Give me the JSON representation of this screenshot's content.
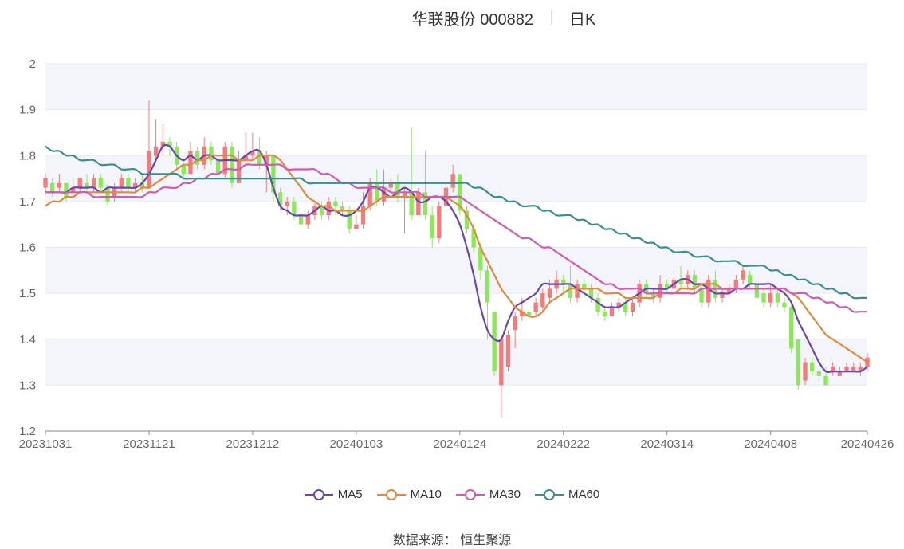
{
  "header": {
    "stock_title": "华联股份 000882",
    "period": "日K"
  },
  "source": {
    "label": "数据来源：",
    "value": "恒生聚源"
  },
  "chart_data": {
    "type": "candlestick",
    "ylim": [
      1.2,
      2.0
    ],
    "yticks": [
      "1.2",
      "1.3",
      "1.4",
      "1.5",
      "1.6",
      "1.7",
      "1.8",
      "1.9",
      "2"
    ],
    "xticks": [
      {
        "label": "20231031",
        "i": 0
      },
      {
        "label": "20231121",
        "i": 15
      },
      {
        "label": "20231212",
        "i": 30
      },
      {
        "label": "20240103",
        "i": 45
      },
      {
        "label": "20240124",
        "i": 60
      },
      {
        "label": "20240222",
        "i": 75
      },
      {
        "label": "20240314",
        "i": 90
      },
      {
        "label": "20240408",
        "i": 105
      },
      {
        "label": "20240426",
        "i": 119
      }
    ],
    "colors": {
      "up": "#f37b7b",
      "down": "#8be85a",
      "band": "#f3f5fb",
      "grid": "#e6e9f0",
      "axis": "#666666"
    },
    "candles": [
      [
        1.73,
        1.75,
        1.76,
        1.72
      ],
      [
        1.74,
        1.72,
        1.75,
        1.71
      ],
      [
        1.73,
        1.74,
        1.76,
        1.72
      ],
      [
        1.74,
        1.71,
        1.74,
        1.7
      ],
      [
        1.72,
        1.73,
        1.75,
        1.71
      ],
      [
        1.73,
        1.75,
        1.75,
        1.72
      ],
      [
        1.74,
        1.73,
        1.76,
        1.72
      ],
      [
        1.73,
        1.75,
        1.76,
        1.72
      ],
      [
        1.75,
        1.73,
        1.76,
        1.72
      ],
      [
        1.73,
        1.7,
        1.74,
        1.69
      ],
      [
        1.71,
        1.73,
        1.74,
        1.7
      ],
      [
        1.73,
        1.75,
        1.76,
        1.72
      ],
      [
        1.75,
        1.73,
        1.76,
        1.72
      ],
      [
        1.73,
        1.74,
        1.75,
        1.72
      ],
      [
        1.74,
        1.73,
        1.76,
        1.72
      ],
      [
        1.73,
        1.81,
        1.92,
        1.73
      ],
      [
        1.8,
        1.82,
        1.88,
        1.79
      ],
      [
        1.82,
        1.83,
        1.87,
        1.8
      ],
      [
        1.83,
        1.82,
        1.84,
        1.8
      ],
      [
        1.82,
        1.78,
        1.83,
        1.77
      ],
      [
        1.78,
        1.76,
        1.79,
        1.75
      ],
      [
        1.76,
        1.81,
        1.83,
        1.76
      ],
      [
        1.81,
        1.78,
        1.82,
        1.77
      ],
      [
        1.78,
        1.82,
        1.84,
        1.77
      ],
      [
        1.82,
        1.79,
        1.83,
        1.78
      ],
      [
        1.79,
        1.76,
        1.8,
        1.75
      ],
      [
        1.76,
        1.82,
        1.83,
        1.75
      ],
      [
        1.82,
        1.74,
        1.83,
        1.73
      ],
      [
        1.74,
        1.79,
        1.81,
        1.74
      ],
      [
        1.79,
        1.8,
        1.85,
        1.78
      ],
      [
        1.8,
        1.81,
        1.85,
        1.79
      ],
      [
        1.81,
        1.78,
        1.84,
        1.77
      ],
      [
        1.78,
        1.8,
        1.81,
        1.72
      ],
      [
        1.8,
        1.72,
        1.8,
        1.7
      ],
      [
        1.72,
        1.69,
        1.73,
        1.68
      ],
      [
        1.69,
        1.7,
        1.71,
        1.67
      ],
      [
        1.7,
        1.67,
        1.71,
        1.66
      ],
      [
        1.67,
        1.65,
        1.68,
        1.64
      ],
      [
        1.65,
        1.67,
        1.68,
        1.64
      ],
      [
        1.67,
        1.69,
        1.7,
        1.66
      ],
      [
        1.69,
        1.67,
        1.7,
        1.66
      ],
      [
        1.67,
        1.7,
        1.71,
        1.66
      ],
      [
        1.7,
        1.69,
        1.71,
        1.67
      ],
      [
        1.69,
        1.68,
        1.7,
        1.67
      ],
      [
        1.68,
        1.64,
        1.69,
        1.63
      ],
      [
        1.64,
        1.65,
        1.67,
        1.64
      ],
      [
        1.65,
        1.69,
        1.72,
        1.64
      ],
      [
        1.69,
        1.74,
        1.75,
        1.68
      ],
      [
        1.74,
        1.7,
        1.77,
        1.69
      ],
      [
        1.7,
        1.73,
        1.77,
        1.69
      ],
      [
        1.73,
        1.74,
        1.75,
        1.72
      ],
      [
        1.74,
        1.71,
        1.76,
        1.7
      ],
      [
        1.71,
        1.72,
        1.73,
        1.63
      ],
      [
        1.72,
        1.67,
        1.86,
        1.66
      ],
      [
        1.67,
        1.72,
        1.73,
        1.68
      ],
      [
        1.72,
        1.67,
        1.81,
        1.66
      ],
      [
        1.67,
        1.62,
        1.69,
        1.6
      ],
      [
        1.62,
        1.69,
        1.7,
        1.61
      ],
      [
        1.69,
        1.73,
        1.74,
        1.68
      ],
      [
        1.73,
        1.76,
        1.78,
        1.72
      ],
      [
        1.76,
        1.68,
        1.76,
        1.67
      ],
      [
        1.68,
        1.64,
        1.69,
        1.63
      ],
      [
        1.64,
        1.6,
        1.65,
        1.59
      ],
      [
        1.6,
        1.55,
        1.61,
        1.53
      ],
      [
        1.55,
        1.48,
        1.56,
        1.4
      ],
      [
        1.46,
        1.33,
        1.46,
        1.32
      ],
      [
        1.3,
        1.4,
        1.41,
        1.23
      ],
      [
        1.34,
        1.41,
        1.42,
        1.33
      ],
      [
        1.42,
        1.45,
        1.46,
        1.38
      ],
      [
        1.45,
        1.46,
        1.49,
        1.44
      ],
      [
        1.46,
        1.45,
        1.47,
        1.44
      ],
      [
        1.46,
        1.48,
        1.49,
        1.45
      ],
      [
        1.47,
        1.5,
        1.51,
        1.46
      ],
      [
        1.49,
        1.51,
        1.53,
        1.48
      ],
      [
        1.51,
        1.53,
        1.55,
        1.5
      ],
      [
        1.53,
        1.52,
        1.54,
        1.5
      ],
      [
        1.52,
        1.49,
        1.56,
        1.48
      ],
      [
        1.49,
        1.52,
        1.53,
        1.48
      ],
      [
        1.52,
        1.51,
        1.53,
        1.49
      ],
      [
        1.51,
        1.49,
        1.52,
        1.48
      ],
      [
        1.49,
        1.46,
        1.5,
        1.45
      ],
      [
        1.46,
        1.45,
        1.47,
        1.44
      ],
      [
        1.45,
        1.47,
        1.48,
        1.45
      ],
      [
        1.47,
        1.48,
        1.49,
        1.46
      ],
      [
        1.48,
        1.46,
        1.49,
        1.45
      ],
      [
        1.46,
        1.48,
        1.49,
        1.45
      ],
      [
        1.48,
        1.52,
        1.53,
        1.47
      ],
      [
        1.52,
        1.5,
        1.53,
        1.49
      ],
      [
        1.5,
        1.49,
        1.51,
        1.48
      ],
      [
        1.49,
        1.52,
        1.54,
        1.48
      ],
      [
        1.52,
        1.51,
        1.53,
        1.5
      ],
      [
        1.51,
        1.53,
        1.55,
        1.5
      ],
      [
        1.53,
        1.52,
        1.56,
        1.51
      ],
      [
        1.52,
        1.54,
        1.55,
        1.51
      ],
      [
        1.54,
        1.51,
        1.55,
        1.5
      ],
      [
        1.51,
        1.48,
        1.52,
        1.47
      ],
      [
        1.48,
        1.53,
        1.54,
        1.47
      ],
      [
        1.53,
        1.49,
        1.55,
        1.48
      ],
      [
        1.49,
        1.5,
        1.51,
        1.48
      ],
      [
        1.5,
        1.51,
        1.52,
        1.49
      ],
      [
        1.51,
        1.53,
        1.54,
        1.5
      ],
      [
        1.53,
        1.55,
        1.56,
        1.52
      ],
      [
        1.54,
        1.52,
        1.55,
        1.51
      ],
      [
        1.52,
        1.49,
        1.53,
        1.48
      ],
      [
        1.5,
        1.48,
        1.51,
        1.47
      ],
      [
        1.48,
        1.5,
        1.52,
        1.47
      ],
      [
        1.5,
        1.48,
        1.51,
        1.47
      ],
      [
        1.48,
        1.47,
        1.49,
        1.46
      ],
      [
        1.47,
        1.38,
        1.48,
        1.37
      ],
      [
        1.4,
        1.3,
        1.4,
        1.29
      ],
      [
        1.31,
        1.35,
        1.36,
        1.3
      ],
      [
        1.35,
        1.33,
        1.36,
        1.32
      ],
      [
        1.33,
        1.32,
        1.34,
        1.31
      ],
      [
        1.32,
        1.3,
        1.34,
        1.3
      ],
      [
        1.33,
        1.34,
        1.35,
        1.32
      ],
      [
        1.32,
        1.33,
        1.34,
        1.32
      ],
      [
        1.33,
        1.34,
        1.35,
        1.33
      ],
      [
        1.33,
        1.34,
        1.35,
        1.33
      ],
      [
        1.33,
        1.34,
        1.35,
        1.32
      ],
      [
        1.34,
        1.36,
        1.37,
        1.33
      ]
    ],
    "series": [
      {
        "name": "MA5",
        "color": "#6a44b0",
        "values": [
          1.72,
          1.72,
          1.72,
          1.72,
          1.73,
          1.73,
          1.73,
          1.73,
          1.72,
          1.73,
          1.73,
          1.73,
          1.73,
          1.73,
          1.74,
          1.76,
          1.79,
          1.82,
          1.82,
          1.8,
          1.79,
          1.8,
          1.79,
          1.8,
          1.8,
          1.79,
          1.79,
          1.79,
          1.79,
          1.8,
          1.81,
          1.81,
          1.78,
          1.73,
          1.69,
          1.68,
          1.67,
          1.67,
          1.67,
          1.68,
          1.69,
          1.68,
          1.68,
          1.67,
          1.67,
          1.68,
          1.7,
          1.73,
          1.73,
          1.72,
          1.71,
          1.72,
          1.73,
          1.72,
          1.7,
          1.7,
          1.71,
          1.71,
          1.7,
          1.68,
          1.65,
          1.6,
          1.54,
          1.47,
          1.42,
          1.4,
          1.4,
          1.44,
          1.47,
          1.48,
          1.49,
          1.5,
          1.52,
          1.52,
          1.52,
          1.52,
          1.52,
          1.51,
          1.5,
          1.49,
          1.48,
          1.47,
          1.47,
          1.47,
          1.48,
          1.49,
          1.5,
          1.51,
          1.51,
          1.51,
          1.51,
          1.52,
          1.53,
          1.53,
          1.52,
          1.52,
          1.51,
          1.5,
          1.5,
          1.5,
          1.51,
          1.51,
          1.52,
          1.52,
          1.52,
          1.52,
          1.51,
          1.5,
          1.48,
          1.44,
          1.41,
          1.38,
          1.35,
          1.33,
          1.33,
          1.33,
          1.33,
          1.33,
          1.33,
          1.34
        ]
      },
      {
        "name": "MA10",
        "color": "#e08a3c",
        "values": [
          1.69,
          1.7,
          1.7,
          1.71,
          1.71,
          1.72,
          1.72,
          1.72,
          1.72,
          1.72,
          1.72,
          1.72,
          1.72,
          1.72,
          1.73,
          1.73,
          1.74,
          1.75,
          1.76,
          1.77,
          1.78,
          1.78,
          1.79,
          1.79,
          1.8,
          1.8,
          1.8,
          1.8,
          1.79,
          1.79,
          1.79,
          1.8,
          1.8,
          1.8,
          1.79,
          1.77,
          1.75,
          1.73,
          1.71,
          1.7,
          1.69,
          1.69,
          1.68,
          1.68,
          1.68,
          1.68,
          1.68,
          1.69,
          1.7,
          1.71,
          1.71,
          1.71,
          1.71,
          1.71,
          1.71,
          1.71,
          1.71,
          1.71,
          1.71,
          1.7,
          1.69,
          1.67,
          1.64,
          1.6,
          1.57,
          1.54,
          1.51,
          1.49,
          1.47,
          1.46,
          1.45,
          1.45,
          1.46,
          1.48,
          1.49,
          1.5,
          1.51,
          1.51,
          1.51,
          1.51,
          1.51,
          1.5,
          1.5,
          1.5,
          1.49,
          1.49,
          1.49,
          1.49,
          1.49,
          1.5,
          1.5,
          1.5,
          1.51,
          1.51,
          1.51,
          1.52,
          1.52,
          1.52,
          1.51,
          1.51,
          1.51,
          1.51,
          1.51,
          1.51,
          1.51,
          1.51,
          1.51,
          1.51,
          1.5,
          1.49,
          1.47,
          1.45,
          1.43,
          1.41,
          1.4,
          1.39,
          1.38,
          1.37,
          1.36,
          1.35
        ]
      },
      {
        "name": "MA30",
        "color": "#d25ab0",
        "values": [
          1.72,
          1.72,
          1.72,
          1.72,
          1.72,
          1.72,
          1.72,
          1.71,
          1.71,
          1.71,
          1.71,
          1.71,
          1.71,
          1.71,
          1.71,
          1.72,
          1.72,
          1.73,
          1.73,
          1.73,
          1.74,
          1.74,
          1.75,
          1.75,
          1.76,
          1.76,
          1.77,
          1.77,
          1.77,
          1.78,
          1.78,
          1.78,
          1.78,
          1.78,
          1.78,
          1.77,
          1.77,
          1.77,
          1.77,
          1.77,
          1.76,
          1.76,
          1.75,
          1.74,
          1.74,
          1.73,
          1.73,
          1.73,
          1.73,
          1.73,
          1.72,
          1.72,
          1.72,
          1.72,
          1.72,
          1.71,
          1.71,
          1.71,
          1.71,
          1.71,
          1.71,
          1.7,
          1.69,
          1.68,
          1.67,
          1.66,
          1.65,
          1.64,
          1.63,
          1.62,
          1.62,
          1.61,
          1.6,
          1.6,
          1.59,
          1.58,
          1.57,
          1.56,
          1.55,
          1.54,
          1.53,
          1.52,
          1.52,
          1.51,
          1.51,
          1.51,
          1.51,
          1.5,
          1.5,
          1.5,
          1.5,
          1.5,
          1.5,
          1.5,
          1.5,
          1.51,
          1.51,
          1.51,
          1.51,
          1.51,
          1.51,
          1.51,
          1.51,
          1.51,
          1.51,
          1.51,
          1.51,
          1.51,
          1.5,
          1.5,
          1.5,
          1.49,
          1.49,
          1.48,
          1.48,
          1.47,
          1.47,
          1.46,
          1.46,
          1.46
        ]
      },
      {
        "name": "MA60",
        "color": "#3a8e8e",
        "values": [
          1.82,
          1.81,
          1.81,
          1.8,
          1.8,
          1.79,
          1.79,
          1.79,
          1.78,
          1.78,
          1.78,
          1.77,
          1.77,
          1.77,
          1.76,
          1.76,
          1.76,
          1.76,
          1.76,
          1.76,
          1.75,
          1.75,
          1.75,
          1.75,
          1.75,
          1.75,
          1.75,
          1.75,
          1.75,
          1.75,
          1.75,
          1.75,
          1.75,
          1.75,
          1.75,
          1.75,
          1.75,
          1.75,
          1.74,
          1.74,
          1.74,
          1.74,
          1.74,
          1.74,
          1.74,
          1.74,
          1.74,
          1.74,
          1.74,
          1.74,
          1.74,
          1.74,
          1.74,
          1.74,
          1.74,
          1.74,
          1.74,
          1.74,
          1.74,
          1.74,
          1.74,
          1.74,
          1.73,
          1.73,
          1.72,
          1.71,
          1.71,
          1.7,
          1.7,
          1.69,
          1.69,
          1.69,
          1.68,
          1.68,
          1.67,
          1.67,
          1.67,
          1.66,
          1.66,
          1.65,
          1.65,
          1.64,
          1.64,
          1.63,
          1.63,
          1.62,
          1.62,
          1.61,
          1.61,
          1.6,
          1.6,
          1.59,
          1.59,
          1.59,
          1.58,
          1.58,
          1.58,
          1.57,
          1.57,
          1.57,
          1.57,
          1.56,
          1.56,
          1.56,
          1.56,
          1.55,
          1.55,
          1.54,
          1.54,
          1.53,
          1.53,
          1.52,
          1.52,
          1.51,
          1.51,
          1.5,
          1.5,
          1.49,
          1.49,
          1.49
        ]
      }
    ]
  }
}
